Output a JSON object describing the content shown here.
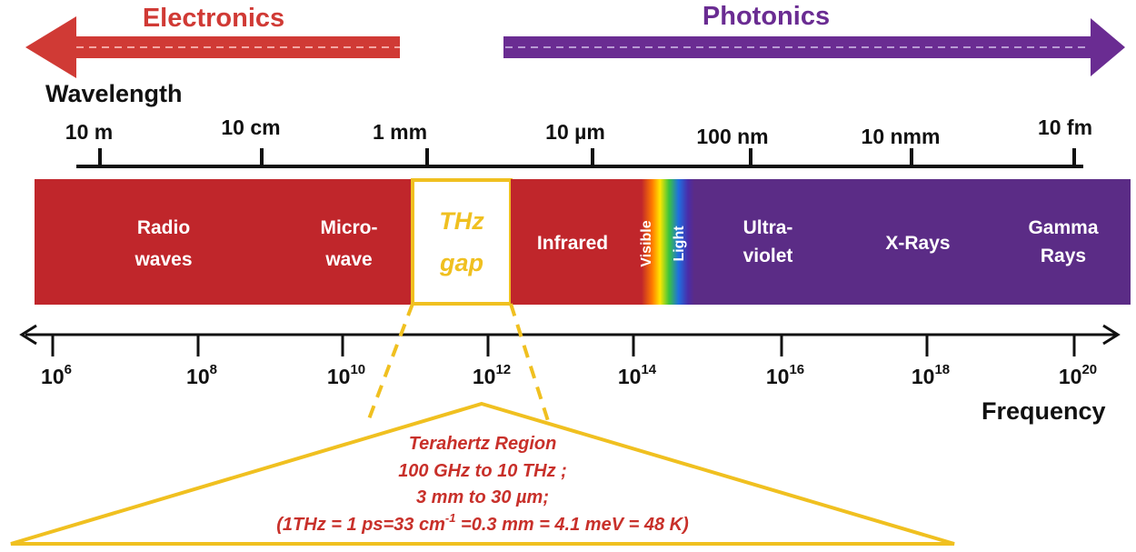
{
  "header": {
    "electronics_label": "Electronics",
    "photonics_label": "Photonics"
  },
  "wavelength_axis": {
    "title": "Wavelength",
    "ticks": [
      "10 m",
      "10 cm",
      "1 mm",
      "10 µm",
      "100 nm",
      "10 nmm",
      "10 fm"
    ]
  },
  "spectrum": {
    "radio": [
      "Radio",
      "waves"
    ],
    "microwave": [
      "Micro-",
      "wave"
    ],
    "thz_gap": [
      "THz",
      "gap"
    ],
    "infrared": "Infrared",
    "visible": [
      "Visible",
      "Light"
    ],
    "ultraviolet": [
      "Ultra-",
      "violet"
    ],
    "xrays": "X-Rays",
    "gamma": [
      "Gamma",
      "Rays"
    ]
  },
  "frequency_axis": {
    "title": "Frequency",
    "base": "10",
    "exponents": [
      "6",
      "8",
      "10",
      "12",
      "14",
      "16",
      "18",
      "20"
    ]
  },
  "terahertz_region": {
    "title": "Terahertz Region",
    "range_frequency": "100 GHz to 10 THz ;",
    "range_wavelength": "3 mm to 30 µm;",
    "eq_prefix": "(1THz = 1 ps=33 cm",
    "eq_sup": "-1",
    "eq_suffix": " =0.3 mm =  4.1 meV = 48 K)"
  },
  "colors": {
    "electronics": "#d03a35",
    "photonics": "#6a2c92",
    "red_band": "#c0262b",
    "purple_band": "#5b2c86",
    "thz_gold": "#f0c020",
    "region_text": "#c8302a"
  }
}
